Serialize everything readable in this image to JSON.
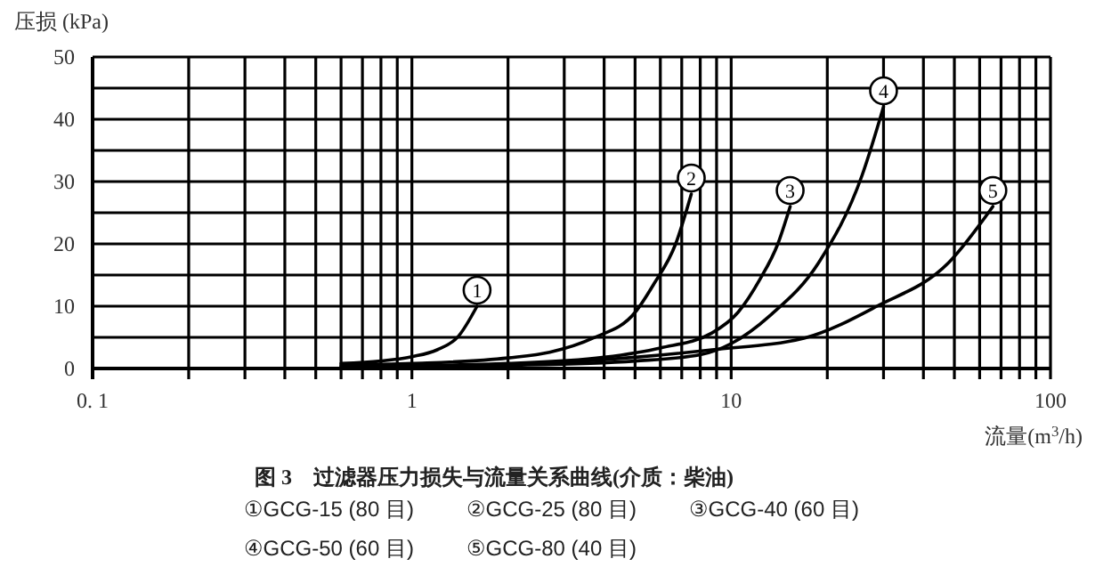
{
  "chart_data": {
    "type": "line",
    "title": "图 3　过滤器压力损失与流量关系曲线(介质：柴油)",
    "xlabel": "流量(m$^{3}$/h)",
    "ylabel": "压损 (kPa)",
    "log": "x",
    "grid": true,
    "marker": "none",
    "line_style": "solid",
    "xlim": [
      0.1,
      100
    ],
    "ylim": [
      0,
      50
    ],
    "xticks": [
      {
        "value": 0.1,
        "label": "0. 1"
      },
      {
        "value": 0.2,
        "label": null
      },
      {
        "value": 0.3,
        "label": null
      },
      {
        "value": 0.4,
        "label": null
      },
      {
        "value": 0.5,
        "label": null
      },
      {
        "value": 0.6,
        "label": null
      },
      {
        "value": 0.7,
        "label": null
      },
      {
        "value": 0.8,
        "label": null
      },
      {
        "value": 0.9,
        "label": null
      },
      1,
      {
        "value": 2,
        "label": null
      },
      {
        "value": 3,
        "label": null
      },
      {
        "value": 4,
        "label": null
      },
      {
        "value": 5,
        "label": null
      },
      {
        "value": 6,
        "label": null
      },
      {
        "value": 7,
        "label": null
      },
      {
        "value": 8,
        "label": null
      },
      {
        "value": 9,
        "label": null
      },
      10,
      {
        "value": 20,
        "label": null
      },
      {
        "value": 30,
        "label": null
      },
      {
        "value": 40,
        "label": null
      },
      {
        "value": 50,
        "label": null
      },
      {
        "value": 60,
        "label": null
      },
      {
        "value": 70,
        "label": null
      },
      {
        "value": 80,
        "label": null
      },
      {
        "value": 90,
        "label": null
      },
      100
    ],
    "yticks": [
      0,
      {
        "value": 5,
        "label": null
      },
      10,
      {
        "value": 15,
        "label": null
      },
      20,
      {
        "value": 25,
        "label": null
      },
      30,
      {
        "value": 35,
        "label": null
      },
      40,
      {
        "value": 45,
        "label": null
      },
      50
    ],
    "series": [
      {
        "name": "1",
        "color": "#000000",
        "x": [
          0.6,
          0.8,
          1,
          1.2,
          1.4,
          1.6
        ],
        "values": [
          0.8,
          1.2,
          1.9,
          3,
          5.2,
          10
        ]
      },
      {
        "name": "2",
        "color": "#000000",
        "x": [
          0.6,
          1,
          2,
          2.7,
          3.7,
          5,
          5.7,
          6.7,
          7.5
        ],
        "values": [
          0.5,
          0.8,
          1.7,
          2.6,
          4.9,
          9,
          13.4,
          20,
          28
        ]
      },
      {
        "name": "3",
        "color": "#000000",
        "x": [
          0.6,
          2,
          4,
          6,
          8.7,
          10.5,
          12.3,
          14,
          15.3
        ],
        "values": [
          0.3,
          0.8,
          1.8,
          3.3,
          5.7,
          9,
          14.3,
          20,
          26
        ]
      },
      {
        "name": "4",
        "color": "#000000",
        "x": [
          0.6,
          2,
          5,
          8,
          10,
          13.3,
          18.8,
          25.7,
          30
        ],
        "values": [
          0.2,
          0.5,
          1.2,
          2.2,
          4,
          8.6,
          17,
          31,
          42
        ]
      },
      {
        "name": "5",
        "color": "#000000",
        "x": [
          0.6,
          2,
          5,
          8.7,
          17,
          28.6,
          48,
          66
        ],
        "values": [
          0.1,
          0.6,
          1.8,
          3,
          4.9,
          10,
          17,
          26
        ]
      }
    ],
    "annotations": [
      "①GCG-15 (80 目)",
      "②GCG-25 (80 目)",
      "③GCG-40 (60 目)",
      "④GCG-50 (60 目)",
      "⑤GCG-80 (40 目)"
    ]
  }
}
